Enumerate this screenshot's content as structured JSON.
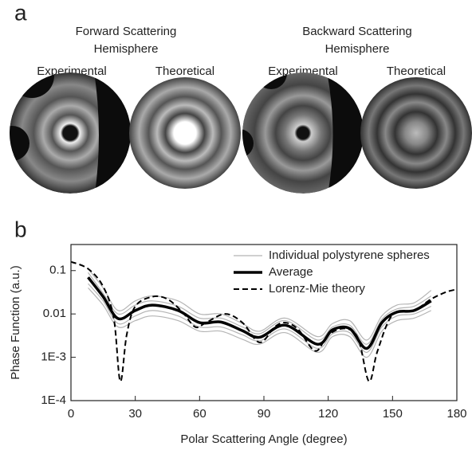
{
  "panel_a": {
    "label": "a",
    "groups": [
      {
        "title_lines": [
          "Forward Scattering",
          "Hemisphere"
        ],
        "images": [
          "Experimental",
          "Theoretical"
        ]
      },
      {
        "title_lines": [
          "Backward Scattering",
          "Hemisphere"
        ],
        "images": [
          "Experimental",
          "Theoretical"
        ]
      }
    ]
  },
  "chart_data": {
    "type": "line",
    "label": "b",
    "xlabel": "Polar Scattering Angle (degree)",
    "ylabel": "Phase Function (a.u.)",
    "xlim": [
      0,
      180
    ],
    "xticks": [
      0,
      30,
      60,
      90,
      120,
      150,
      180
    ],
    "ylim": [
      0.0001,
      0.4
    ],
    "log_y": true,
    "yticks": [
      {
        "value": 0.0001,
        "label": "1E-4"
      },
      {
        "value": 0.001,
        "label": "1E-3"
      },
      0.01,
      0.1
    ],
    "legend_loc": "upper right",
    "series": [
      {
        "name": "Individual polystyrene spheres",
        "color": "#b4b4b4",
        "width": 1.2,
        "x": [
          8,
          15,
          22,
          30,
          38,
          50,
          60,
          70,
          80,
          88,
          100,
          115,
          122,
          130,
          138,
          145,
          152,
          160,
          168
        ],
        "values": [
          0.11,
          0.04,
          0.012,
          0.02,
          0.026,
          0.02,
          0.01,
          0.01,
          0.006,
          0.004,
          0.008,
          0.003,
          0.006,
          0.007,
          0.0025,
          0.009,
          0.016,
          0.018,
          0.035
        ]
      },
      {
        "color": "#b4b4b4",
        "width": 1.2,
        "x": [
          8,
          15,
          22,
          30,
          38,
          50,
          60,
          70,
          80,
          88,
          100,
          115,
          122,
          130,
          138,
          145,
          152,
          160,
          168
        ],
        "values": [
          0.09,
          0.03,
          0.01,
          0.016,
          0.02,
          0.015,
          0.008,
          0.008,
          0.005,
          0.0035,
          0.007,
          0.0025,
          0.005,
          0.0055,
          0.002,
          0.0075,
          0.013,
          0.015,
          0.026
        ]
      },
      {
        "color": "#b4b4b4",
        "width": 1.2,
        "x": [
          8,
          15,
          22,
          30,
          38,
          50,
          60,
          70,
          80,
          88,
          100,
          115,
          122,
          130,
          138,
          145,
          152,
          160,
          168
        ],
        "values": [
          0.05,
          0.02,
          0.006,
          0.009,
          0.012,
          0.009,
          0.005,
          0.005,
          0.0033,
          0.0024,
          0.0045,
          0.0016,
          0.0035,
          0.0037,
          0.0013,
          0.005,
          0.009,
          0.01,
          0.015
        ]
      },
      {
        "color": "#b4b4b4",
        "width": 1.2,
        "x": [
          8,
          15,
          22,
          30,
          38,
          50,
          60,
          70,
          80,
          88,
          100,
          115,
          122,
          130,
          138,
          145,
          152,
          160,
          168
        ],
        "values": [
          0.04,
          0.016,
          0.005,
          0.007,
          0.009,
          0.007,
          0.004,
          0.004,
          0.0026,
          0.002,
          0.0037,
          0.0013,
          0.003,
          0.003,
          0.001,
          0.004,
          0.007,
          0.008,
          0.012
        ]
      },
      {
        "name": "Average",
        "color": "#000000",
        "width": 3.5,
        "x": [
          8,
          15,
          22,
          30,
          38,
          50,
          60,
          70,
          80,
          88,
          100,
          115,
          122,
          130,
          138,
          145,
          152,
          160,
          168
        ],
        "values": [
          0.07,
          0.025,
          0.0078,
          0.012,
          0.016,
          0.012,
          0.0063,
          0.0065,
          0.0041,
          0.0029,
          0.0055,
          0.002,
          0.0043,
          0.0046,
          0.0016,
          0.0063,
          0.011,
          0.012,
          0.02
        ]
      },
      {
        "name": "Lorenz-Mie theory",
        "color": "#000000",
        "width": 2,
        "dashed": true,
        "x": [
          0,
          8,
          15,
          20,
          23,
          26,
          30,
          38,
          45,
          52,
          58,
          63,
          72,
          80,
          88,
          95,
          100,
          106,
          114,
          120,
          128,
          134,
          139,
          143,
          150,
          160,
          168,
          175,
          180
        ],
        "values": [
          0.16,
          0.11,
          0.043,
          0.0078,
          0.00028,
          0.0033,
          0.015,
          0.025,
          0.022,
          0.011,
          0.005,
          0.0063,
          0.01,
          0.0063,
          0.0022,
          0.005,
          0.0063,
          0.0044,
          0.0014,
          0.0033,
          0.0046,
          0.0027,
          0.00028,
          0.0014,
          0.0096,
          0.012,
          0.022,
          0.032,
          0.037
        ]
      }
    ]
  }
}
